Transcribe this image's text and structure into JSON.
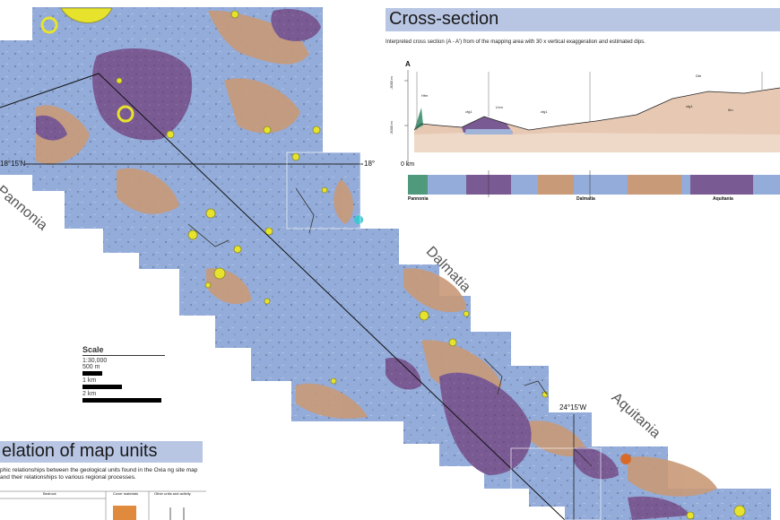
{
  "cross_section": {
    "title": "Cross-section",
    "description": "Interpreted cross section (A - A') from of the mapping area with 30 x vertical exaggeration and estimated dips.",
    "point_label": "A",
    "elev_top": "-3000 m",
    "elev_bottom": "-5000 m",
    "distance_label": "0 km",
    "regions": [
      "Pannonia",
      "Dalmatia",
      "Aquitania"
    ]
  },
  "map": {
    "labels": [
      "Pannonia",
      "Dalmatia",
      "Aquitania"
    ],
    "coord_lat": "18°15'N",
    "coord_lat_right": "18°",
    "coord_lon": "24°15'W"
  },
  "scale": {
    "title": "Scale",
    "ratio": "1:30,000",
    "bars": [
      "500 m",
      "1 km",
      "2 km"
    ]
  },
  "relation": {
    "title": "elation of map units",
    "description": "phic relationships between the geological units found in the Oxia ng site map and their relationships to various regional processes.",
    "col_bedrock": "Bedrock",
    "col_cover": "Cover materials",
    "col_other": "Other units and activity"
  },
  "colors": {
    "blue_plain": "#8ea8d8",
    "tan_unit": "#c99a78",
    "purple_unit": "#7a5a93",
    "crater_yellow": "#e7e32c",
    "header_blue": "#b8c6e4"
  }
}
